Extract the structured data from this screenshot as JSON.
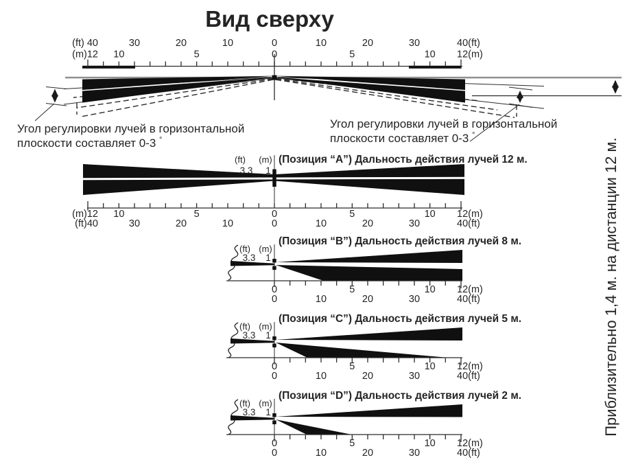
{
  "title": "Вид сверху",
  "colors": {
    "ink": "#242424",
    "beam": "#101010",
    "gray_line": "#8f8f8f",
    "background": "#ffffff"
  },
  "angle_note_left": {
    "line1": "Угол регулировки лучей в горизонтальной",
    "line2": "плоскости составляет 0-3",
    "degree_mark": "°"
  },
  "angle_note_right": {
    "line1": "Угол регулировки лучей в горизонтальной",
    "line2": "плоскости составляет 0-3",
    "degree_mark": "°"
  },
  "side_note": "Приблизительно 1,4 м. на дистанции 12 м.",
  "beam_width_labels": {
    "ft_unit": "(ft)",
    "m_unit": "(m)",
    "ft_value": "3.3",
    "m_value": "1"
  },
  "positions": [
    {
      "id": "A",
      "heading": "(Позиция “A”) Дальность действия лучей 12 м.",
      "range_m": 12
    },
    {
      "id": "B",
      "heading": "(Позиция “B”) Дальность действия лучей 8 м.",
      "range_m": 8
    },
    {
      "id": "C",
      "heading": "(Позиция “C”) Дальность действия лучей 5 м.",
      "range_m": 5
    },
    {
      "id": "D",
      "heading": "(Позиция “D”) Дальность действия лучей 2 м.",
      "range_m": 2
    }
  ],
  "scales": {
    "full_m": {
      "labels": [
        "(m)12",
        "10",
        "5",
        "0",
        "5",
        "10",
        "12(m)"
      ],
      "values": [
        -12,
        -10,
        -5,
        0,
        5,
        10,
        12
      ]
    },
    "full_ft_top": {
      "labels": [
        "(ft) 40",
        "30",
        "20",
        "10",
        "0",
        "10",
        "20",
        "30",
        "40(ft)"
      ],
      "values": [
        -40,
        -30,
        -20,
        -10,
        0,
        10,
        20,
        30,
        40
      ]
    },
    "full_ft": {
      "labels": [
        "(ft)40",
        "30",
        "20",
        "10",
        "0",
        "10",
        "20",
        "30",
        "40(ft)"
      ],
      "values": [
        -40,
        -30,
        -20,
        -10,
        0,
        10,
        20,
        30,
        40
      ]
    },
    "half_m": {
      "labels": [
        "0",
        "5",
        "10",
        "12(m)"
      ],
      "values": [
        0,
        5,
        10,
        12
      ]
    },
    "half_ft": {
      "labels": [
        "0",
        "10",
        "20",
        "30",
        "40(ft)"
      ],
      "values": [
        0,
        10,
        20,
        30,
        40
      ]
    }
  }
}
